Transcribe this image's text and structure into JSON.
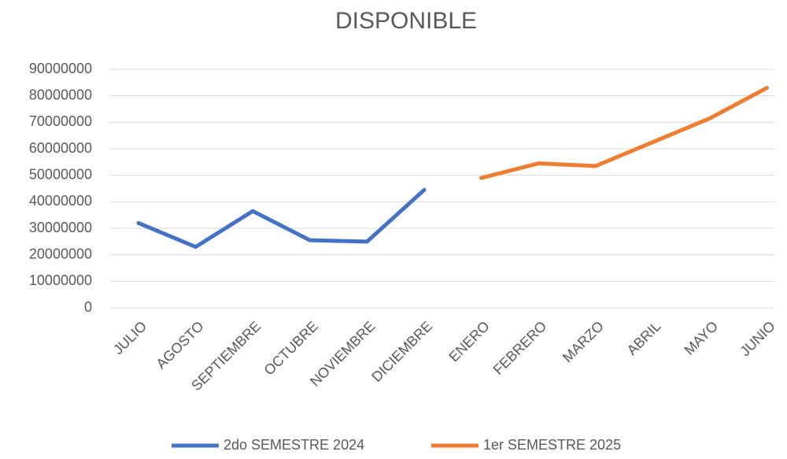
{
  "chart_data": {
    "type": "line",
    "title": "DISPONIBLE",
    "categories": [
      "JULIO",
      "AGOSTO",
      "SEPTIEMBRE",
      "OCTUBRE",
      "NOVIEMBRE",
      "DICIEMBRE",
      "ENERO",
      "FEBRERO",
      "MARZO",
      "ABRIL",
      "MAYO",
      "JUNIO"
    ],
    "series": [
      {
        "name": "2do SEMESTRE 2024",
        "color": "#4472c4",
        "values": [
          32000000,
          23000000,
          36500000,
          25500000,
          25000000,
          44500000,
          null,
          null,
          null,
          null,
          null,
          null
        ]
      },
      {
        "name": "1er SEMESTRE 2025",
        "color": "#ed7d31",
        "values": [
          null,
          null,
          null,
          null,
          null,
          null,
          49000000,
          54500000,
          53500000,
          62500000,
          71500000,
          83000000
        ]
      }
    ],
    "ylim": [
      0,
      90000000
    ],
    "yticks": [
      0,
      10000000,
      20000000,
      30000000,
      40000000,
      50000000,
      60000000,
      70000000,
      80000000,
      90000000
    ],
    "grid": true,
    "legend": "bottom"
  }
}
